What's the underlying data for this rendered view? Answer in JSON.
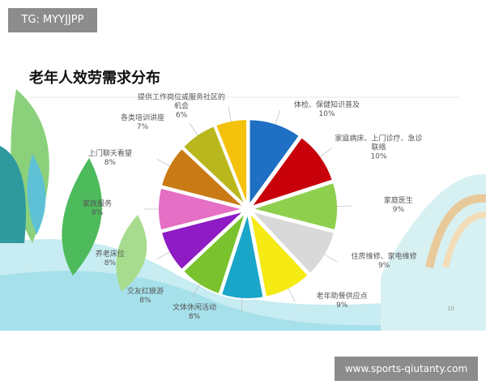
{
  "banner": "TG: MYYJJPP",
  "watermark": "www.sports-qiutanty.com",
  "page_number": "10",
  "chart_data": {
    "type": "pie",
    "title": "老年人效劳需求分布",
    "categories": [
      "体检、保健知识普及",
      "家庭病床、上门诊疗、急诊联络",
      "家庭医生",
      "住房维修、家电维修",
      "老年助餐供应点",
      "文体休闲活动",
      "交友红娘游",
      "养老床位",
      "家政服务",
      "上门聊天看望",
      "各类培训讲座",
      "提供工作岗位或服务社区的机会"
    ],
    "values": [
      10,
      10,
      9,
      9,
      9,
      8,
      8,
      8,
      8,
      8,
      7,
      6
    ],
    "value_labels": [
      "10%",
      "10%",
      "9%",
      "9%",
      "9%",
      "8%",
      "8%",
      "8%",
      "8%",
      "8%",
      "7%",
      "6%"
    ],
    "colors": [
      "#1f6fc4",
      "#c8000a",
      "#8fcf4e",
      "#d9d9d9",
      "#f5ea14",
      "#1aa6c9",
      "#7ac22e",
      "#8e1bc3",
      "#e46fc4",
      "#c97a14",
      "#b8b81e",
      "#f4c20d"
    ]
  }
}
